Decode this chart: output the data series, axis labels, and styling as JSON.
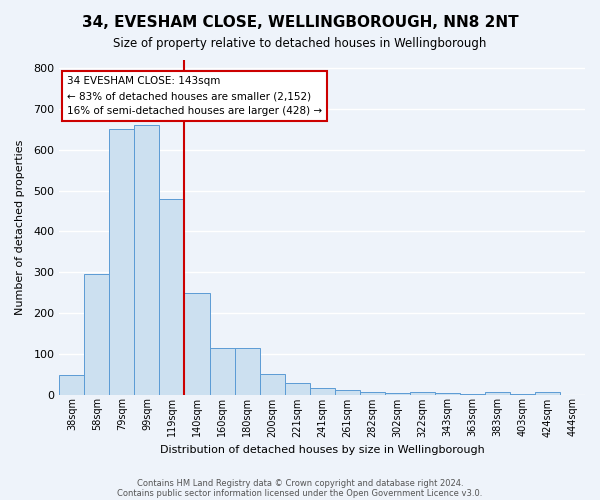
{
  "title": "34, EVESHAM CLOSE, WELLINGBOROUGH, NN8 2NT",
  "subtitle": "Size of property relative to detached houses in Wellingborough",
  "xlabel": "Distribution of detached houses by size in Wellingborough",
  "ylabel": "Number of detached properties",
  "footer_line1": "Contains HM Land Registry data © Crown copyright and database right 2024.",
  "footer_line2": "Contains public sector information licensed under the Open Government Licence v3.0.",
  "bin_labels": [
    "38sqm",
    "58sqm",
    "79sqm",
    "99sqm",
    "119sqm",
    "140sqm",
    "160sqm",
    "180sqm",
    "200sqm",
    "221sqm",
    "241sqm",
    "261sqm",
    "282sqm",
    "302sqm",
    "322sqm",
    "343sqm",
    "363sqm",
    "383sqm",
    "403sqm",
    "424sqm",
    "444sqm"
  ],
  "bar_heights": [
    47,
    295,
    650,
    660,
    480,
    250,
    115,
    115,
    50,
    28,
    15,
    12,
    5,
    4,
    5,
    3,
    2,
    6,
    1,
    7,
    0
  ],
  "bar_color": "#cce0f0",
  "bar_edge_color": "#5b9bd5",
  "background_color": "#eef3fa",
  "grid_color": "#ffffff",
  "vline_x": 5,
  "vline_color": "#cc0000",
  "annotation_title": "34 EVESHAM CLOSE: 143sqm",
  "annotation_line1": "← 83% of detached houses are smaller (2,152)",
  "annotation_line2": "16% of semi-detached houses are larger (428) →",
  "annotation_box_color": "#ffffff",
  "annotation_box_edge_color": "#cc0000",
  "ylim": [
    0,
    820
  ],
  "yticks": [
    0,
    100,
    200,
    300,
    400,
    500,
    600,
    700,
    800
  ]
}
